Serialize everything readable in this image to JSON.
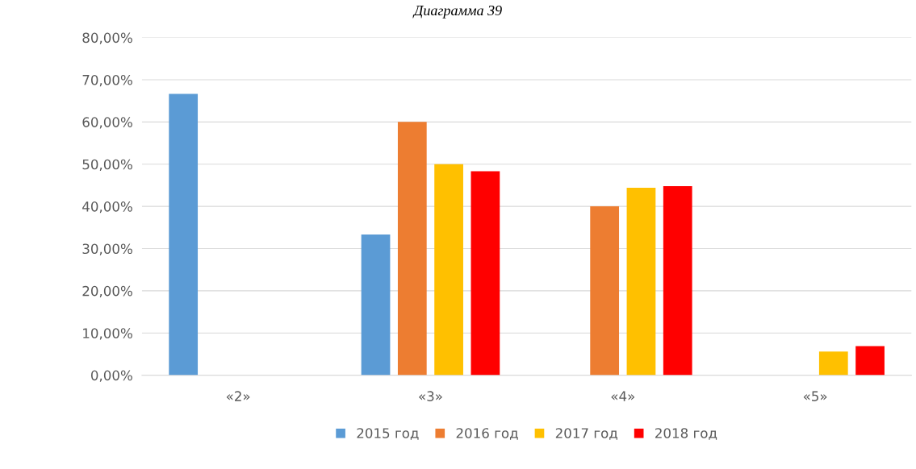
{
  "chart_data": {
    "type": "bar",
    "title": "Диаграмма 39",
    "categories": [
      "«2»",
      "«3»",
      "«4»",
      "«5»"
    ],
    "series": [
      {
        "name": "2015 год",
        "color": "#5b9bd5",
        "values": [
          66.67,
          33.33,
          0,
          0
        ]
      },
      {
        "name": "2016 год",
        "color": "#ed7d31",
        "values": [
          0,
          60.0,
          40.0,
          0
        ]
      },
      {
        "name": "2017 год",
        "color": "#ffc000",
        "values": [
          0,
          50.0,
          44.4,
          5.6
        ]
      },
      {
        "name": "2018 год",
        "color": "#ff0000",
        "values": [
          0,
          48.3,
          44.8,
          6.9
        ]
      }
    ],
    "ylim": [
      0,
      80
    ],
    "yticks": [
      {
        "value": 0,
        "label": "0,00%"
      },
      {
        "value": 10,
        "label": "10,00%"
      },
      {
        "value": 20,
        "label": "20,00%"
      },
      {
        "value": 30,
        "label": "30,00%"
      },
      {
        "value": 40,
        "label": "40,00%"
      },
      {
        "value": 50,
        "label": "50,00%"
      },
      {
        "value": 60,
        "label": "60,00%"
      },
      {
        "value": 70,
        "label": "70,00%"
      },
      {
        "value": 80,
        "label": "80,00%"
      }
    ],
    "grid": "y",
    "legend": "bottom"
  }
}
